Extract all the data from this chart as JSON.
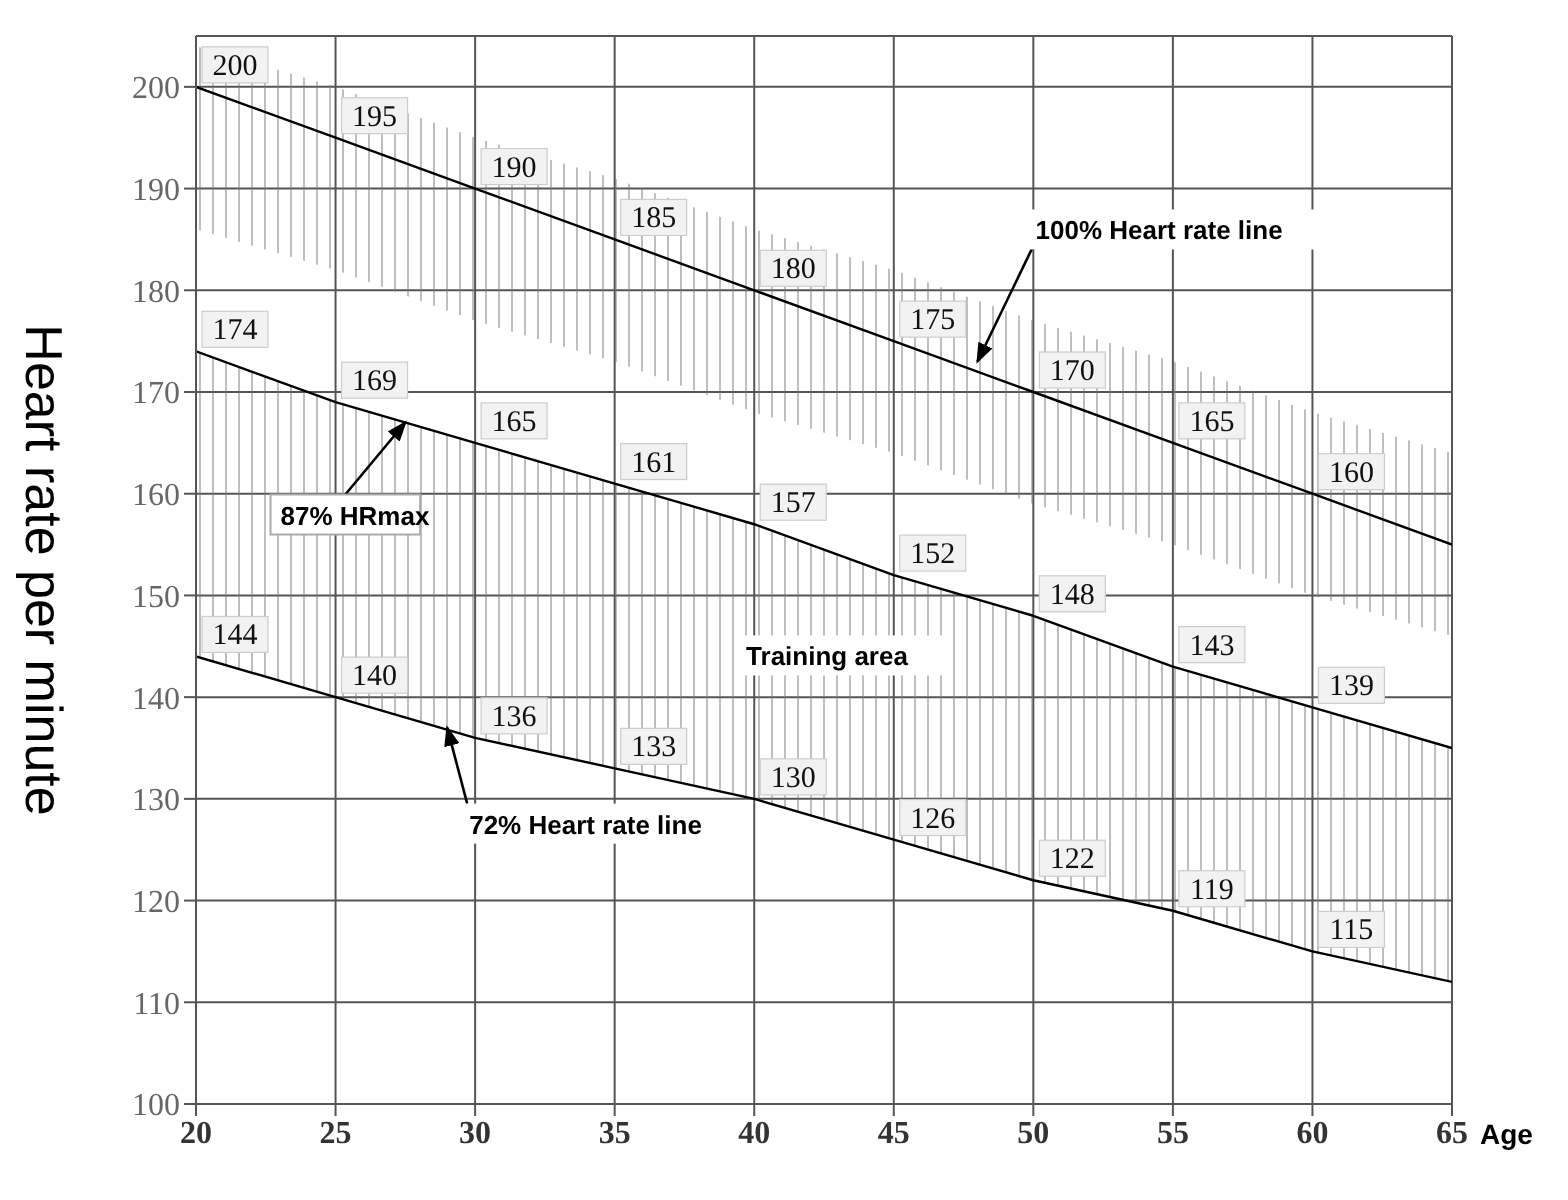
{
  "chart_data": {
    "type": "line",
    "xlabel": "Age",
    "ylabel": "Heart rate per minute",
    "x": [
      20,
      25,
      30,
      35,
      40,
      45,
      50,
      55,
      60,
      65
    ],
    "series": [
      {
        "color": "#000000",
        "values": [
          200,
          195,
          190,
          185,
          180,
          175,
          170,
          165,
          160,
          155
        ],
        "upper": [
          204,
          200,
          195,
          191,
          186,
          182,
          177,
          173,
          168,
          164
        ],
        "lower": [
          186,
          182,
          177,
          173,
          168,
          164,
          159,
          155,
          150,
          146
        ],
        "value_labels": [
          "200",
          "195",
          "190",
          "185",
          "180",
          "175",
          "170",
          "165",
          "160",
          null
        ]
      },
      {
        "color": "#000000",
        "values": [
          174,
          169,
          165,
          161,
          157,
          152,
          148,
          143,
          139,
          135
        ],
        "value_labels": [
          "174",
          "169",
          "165",
          "161",
          "157",
          "152",
          "148",
          "143",
          "139",
          null
        ]
      },
      {
        "color": "#000000",
        "values": [
          144,
          140,
          136,
          133,
          130,
          126,
          122,
          119,
          115,
          112
        ],
        "upper": [
          174,
          169,
          165,
          161,
          157,
          152,
          148,
          143,
          139,
          135
        ],
        "lower": [
          144,
          140,
          136,
          133,
          130,
          126,
          122,
          119,
          115,
          112
        ],
        "value_labels": [
          "144",
          "140",
          "136",
          "133",
          "130",
          "126",
          "122",
          "119",
          "115",
          null
        ]
      }
    ],
    "annotations": [
      {
        "text": "100% Heart rate line",
        "x": 48,
        "y": 173
      },
      {
        "text": "87% HRmax",
        "x": 27.5,
        "y": 167
      },
      {
        "text": "72% Heart rate line",
        "x": 29,
        "y": 137
      },
      "Training area"
    ],
    "xlim": [
      20,
      65
    ],
    "xticks": [
      20,
      25,
      30,
      35,
      40,
      45,
      50,
      55,
      60,
      65
    ],
    "ylim": [
      100,
      205
    ],
    "yticks": [
      100,
      110,
      120,
      130,
      140,
      150,
      160,
      170,
      180,
      190,
      200
    ],
    "grid": true,
    "line_style": "solid"
  }
}
